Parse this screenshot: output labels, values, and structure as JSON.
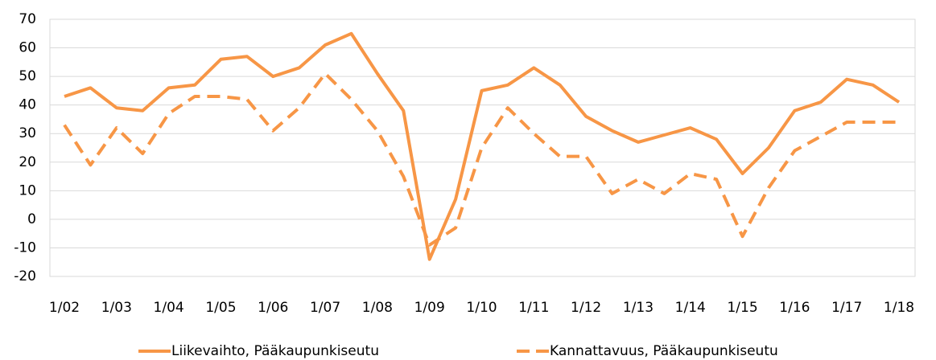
{
  "chart_data": {
    "type": "line",
    "categories": [
      "1/02",
      null,
      "1/03",
      null,
      "1/04",
      null,
      "1/05",
      null,
      "1/06",
      null,
      "1/07",
      null,
      "1/08",
      null,
      "1/09",
      null,
      "1/10",
      null,
      "1/11",
      null,
      "1/12",
      null,
      "1/13",
      null,
      "1/14",
      null,
      "1/15",
      null,
      "1/16",
      null,
      "1/17",
      null,
      "1/18"
    ],
    "series": [
      {
        "name": "Liikevaihto, Pääkaupunkiseutu",
        "color": "#f79646",
        "dash": false,
        "values": [
          43,
          46,
          39,
          38,
          46,
          47,
          56,
          57,
          50,
          53,
          61,
          65,
          51,
          38,
          -14,
          7,
          45,
          47,
          53,
          47,
          36,
          31,
          27,
          29.5,
          32,
          28,
          16,
          25,
          38,
          41,
          49,
          47,
          41
        ]
      },
      {
        "name": "Kannattavuus, Pääkaupunkiseutu",
        "color": "#f79646",
        "dash": true,
        "values": [
          33,
          19,
          32,
          23,
          37,
          43,
          43,
          42,
          31,
          39,
          51,
          42,
          31,
          15,
          -9,
          -3,
          25,
          39,
          30,
          22,
          22,
          9,
          14,
          9,
          16,
          14,
          -6,
          11,
          24,
          29,
          34,
          34,
          34
        ]
      }
    ],
    "ylim": [
      -20,
      70
    ],
    "yticks": [
      -20,
      -10,
      0,
      10,
      20,
      30,
      40,
      50,
      60,
      70
    ],
    "grid": true,
    "legend": "bottom"
  }
}
